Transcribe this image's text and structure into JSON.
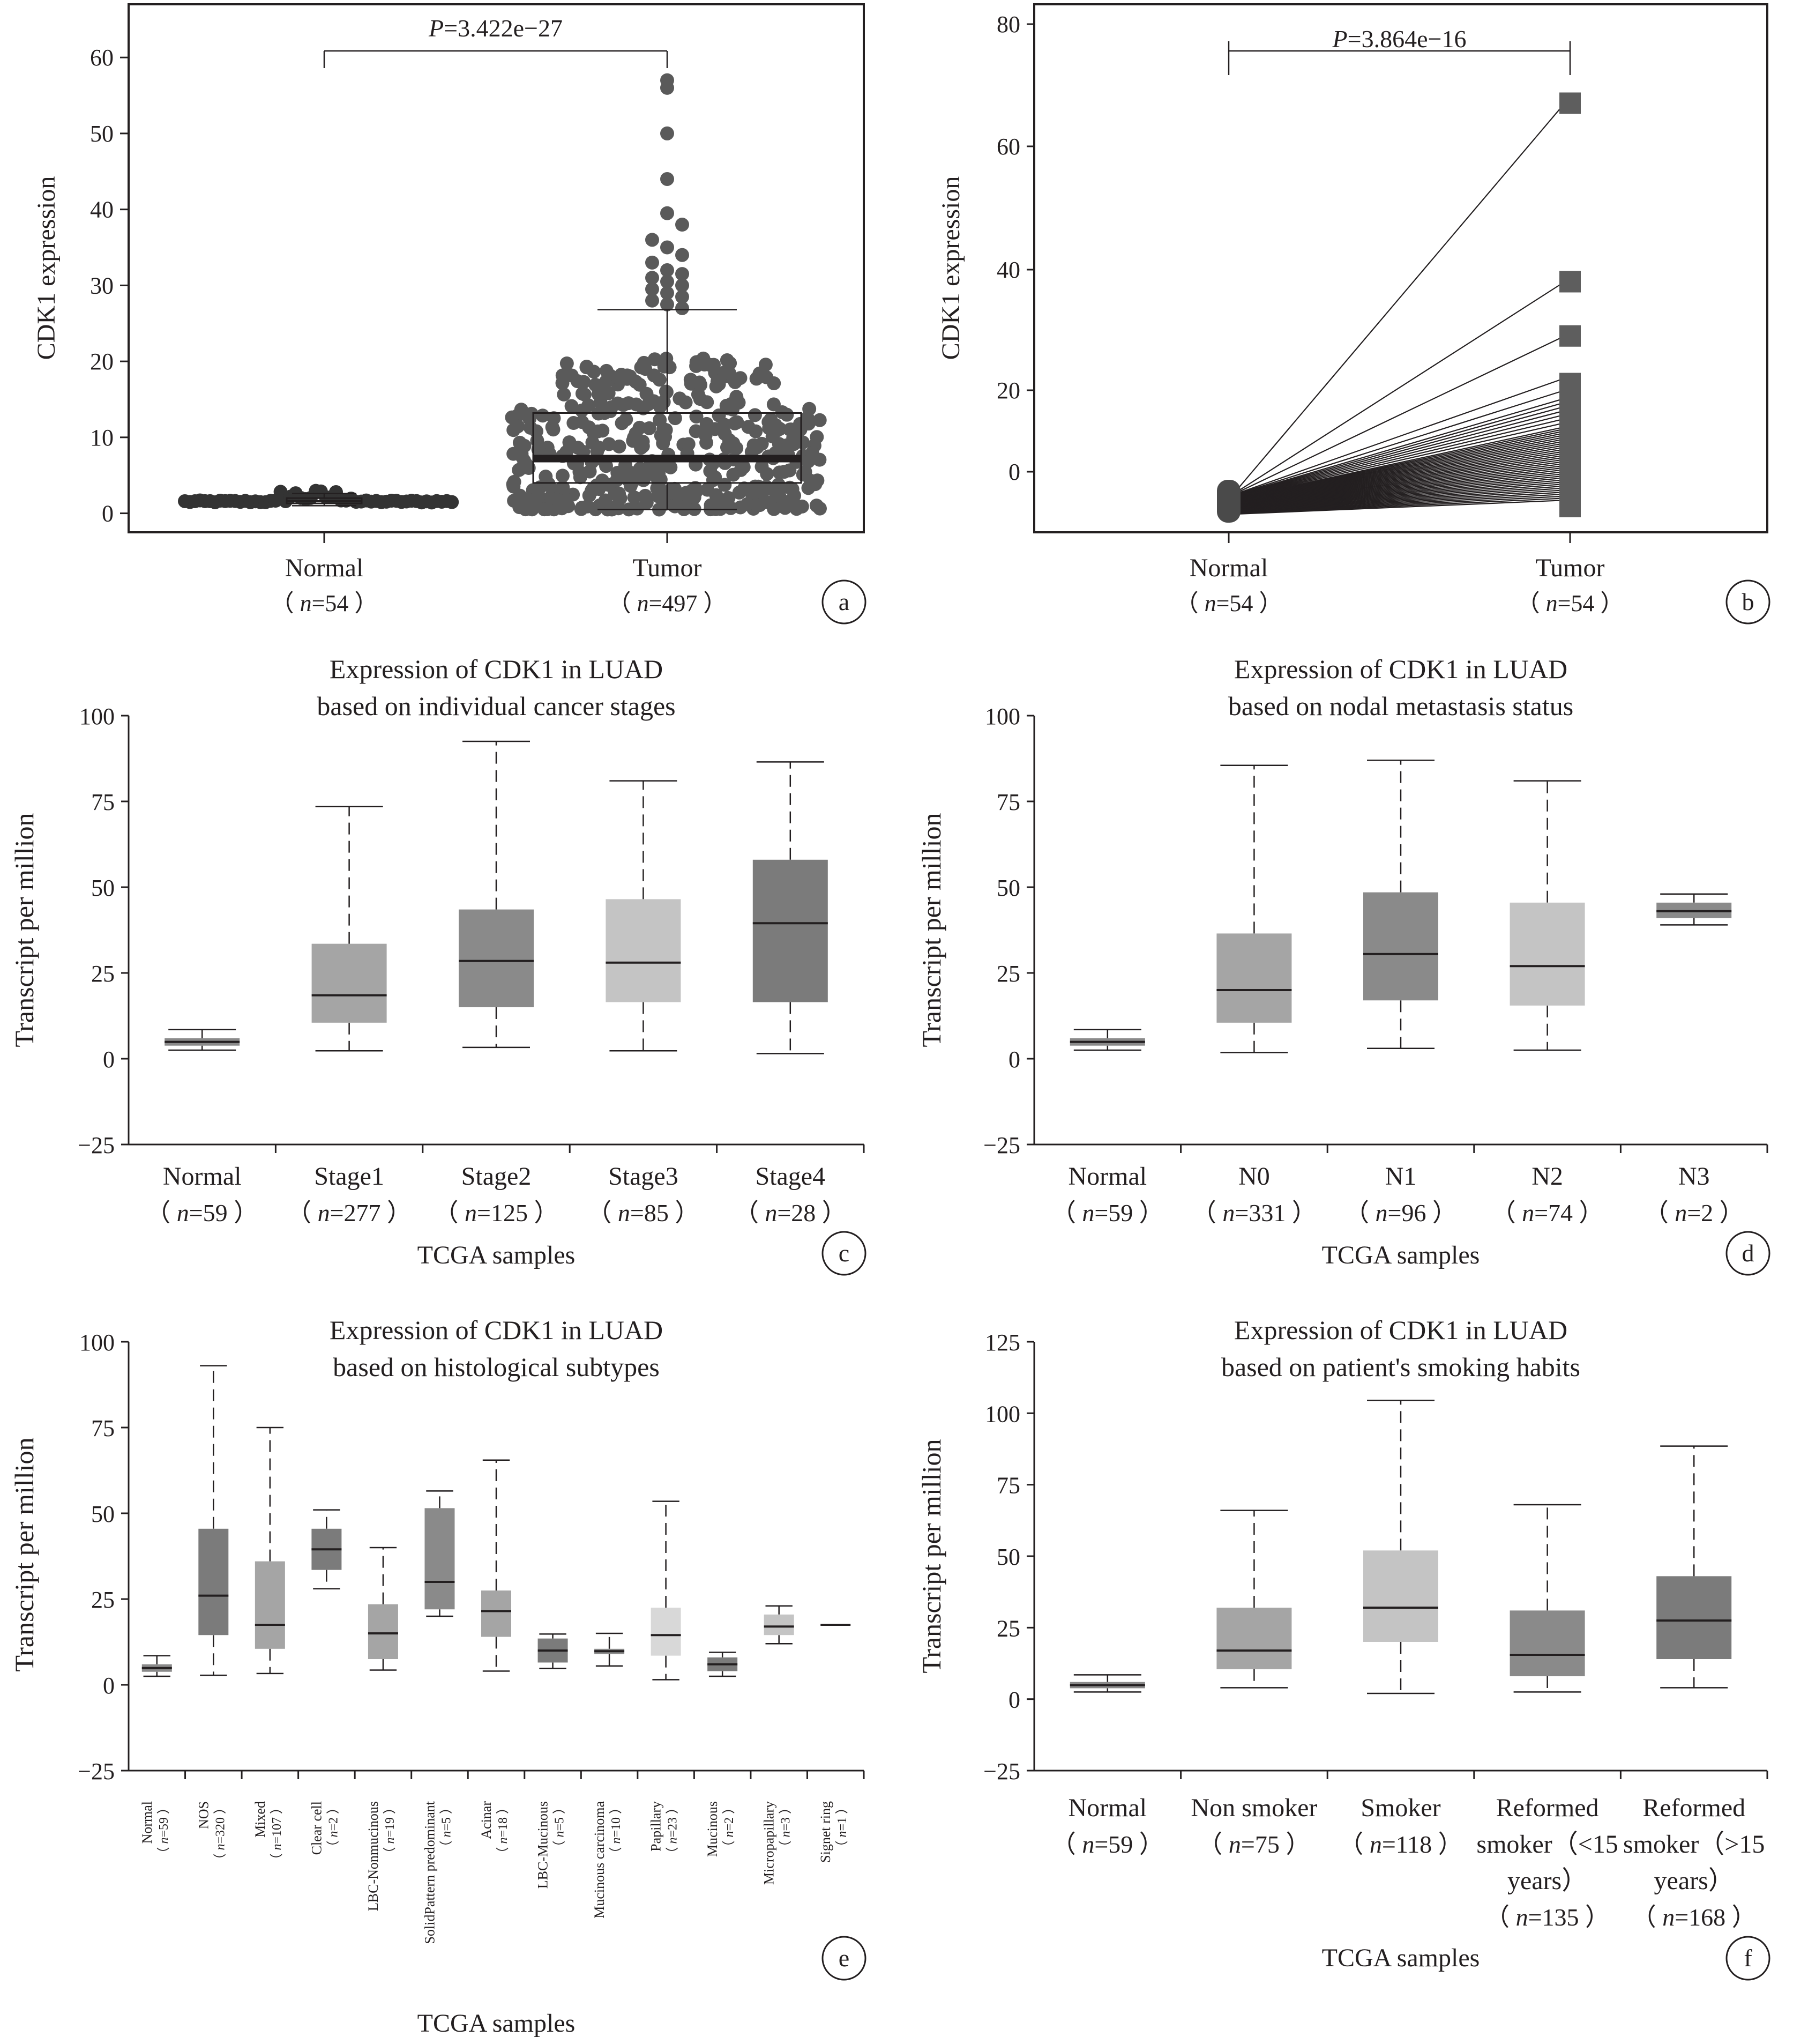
{
  "chart_data": [
    {
      "panel": "a",
      "type": "scatter",
      "subtype": "beeswarm with boxplot",
      "ylabel": "CDK1 expression",
      "ylim": [
        -2,
        66
      ],
      "yticks": [
        0,
        10,
        20,
        30,
        40,
        50,
        60
      ],
      "categories": [
        "Normal",
        "Tumor"
      ],
      "category_counts": [
        "（ n=54 ）",
        "（ n=497 ）"
      ],
      "p_value_text": "P=3.422e−27",
      "point_colors": [
        "#333333",
        "#5a5a5a"
      ],
      "box": [
        {
          "name": "Normal",
          "q1": 1.3,
          "median": 1.6,
          "q3": 2.0,
          "whisker_low": 1.0,
          "whisker_high": 2.6
        },
        {
          "name": "Tumor",
          "q1": 4.0,
          "median": 7.2,
          "q3": 13.2,
          "whisker_low": 0.5,
          "whisker_high": 26.8
        }
      ],
      "tumor_upper_points": [
        57,
        56,
        50,
        44,
        39.5,
        38,
        36,
        35,
        34,
        33,
        32,
        31.5,
        31,
        30.5,
        30,
        29.5,
        29,
        28.5,
        28,
        27.5,
        27
      ]
    },
    {
      "panel": "b",
      "type": "line",
      "subtype": "paired samples",
      "ylabel": "CDK1 expression",
      "yticks": [
        0,
        20,
        40,
        60,
        80
      ],
      "categories": [
        "Normal",
        "Tumor"
      ],
      "category_counts": [
        "（ n=54 ）",
        "（ n=54 ）"
      ],
      "p_value_text": "P=3.864e−16",
      "normal_range": [
        -6,
        -3
      ],
      "tumor_points": [
        67,
        38,
        29,
        22,
        20,
        18,
        17,
        16,
        15,
        14,
        13,
        12,
        11,
        10.5,
        10,
        9.5,
        9,
        8.5,
        8,
        7.5,
        7,
        6.5,
        6,
        5.5,
        5,
        4.5,
        4,
        3.5,
        3,
        2.5,
        2,
        1.5,
        1,
        0.5,
        0,
        -0.5,
        -1,
        -1.5,
        -2,
        -2.5,
        -3,
        -3.5,
        -4,
        -4.5,
        -5,
        -5.5,
        -6,
        -6.5,
        -7
      ]
    },
    {
      "panel": "c",
      "type": "box",
      "title": [
        "Expression of CDK1 in LUAD",
        "based on individual cancer stages"
      ],
      "ylabel": "Transcript per million",
      "xlabel": "TCGA samples",
      "ylim": [
        -25,
        100
      ],
      "yticks": [
        -25,
        0,
        25,
        50,
        75,
        100
      ],
      "boxes": [
        {
          "name": "Normal",
          "n": "（ n=59 ）",
          "min": 2.5,
          "q1": 3.8,
          "median": 4.9,
          "q3": 6.0,
          "max": 8.5,
          "color": "#8a8a8a"
        },
        {
          "name": "Stage1",
          "n": "（ n=277 ）",
          "min": 2.3,
          "q1": 10.5,
          "median": 18.5,
          "q3": 33.5,
          "max": 73.5,
          "color": "#a5a5a5"
        },
        {
          "name": "Stage2",
          "n": "（ n=125 ）",
          "min": 3.3,
          "q1": 15.0,
          "median": 28.5,
          "q3": 43.5,
          "max": 92.5,
          "color": "#8a8a8a"
        },
        {
          "name": "Stage3",
          "n": "（ n=85 ）",
          "min": 2.3,
          "q1": 16.5,
          "median": 28.0,
          "q3": 46.5,
          "max": 81.0,
          "color": "#c4c4c4"
        },
        {
          "name": "Stage4",
          "n": "（ n=28 ）",
          "min": 1.5,
          "q1": 16.5,
          "median": 39.5,
          "q3": 58.0,
          "max": 86.5,
          "color": "#7b7b7b"
        }
      ]
    },
    {
      "panel": "d",
      "type": "box",
      "title": [
        "Expression of CDK1 in LUAD",
        "based on nodal metastasis status"
      ],
      "ylabel": "Transcript per million",
      "xlabel": "TCGA samples",
      "ylim": [
        -25,
        100
      ],
      "yticks": [
        -25,
        0,
        25,
        50,
        75,
        100
      ],
      "boxes": [
        {
          "name": "Normal",
          "n": "（ n=59 ）",
          "min": 2.5,
          "q1": 3.8,
          "median": 4.9,
          "q3": 6.0,
          "max": 8.5,
          "color": "#8a8a8a"
        },
        {
          "name": "N0",
          "n": "（ n=331 ）",
          "min": 1.8,
          "q1": 10.5,
          "median": 20.0,
          "q3": 36.5,
          "max": 85.5,
          "color": "#a5a5a5"
        },
        {
          "name": "N1",
          "n": "（ n=96 ）",
          "min": 3.0,
          "q1": 17.0,
          "median": 30.5,
          "q3": 48.5,
          "max": 87.0,
          "color": "#8a8a8a"
        },
        {
          "name": "N2",
          "n": "（ n=74 ）",
          "min": 2.5,
          "q1": 15.5,
          "median": 27.0,
          "q3": 45.5,
          "max": 81.0,
          "color": "#c4c4c4"
        },
        {
          "name": "N3",
          "n": "（ n=2 ）",
          "min": 39.0,
          "q1": 41.0,
          "median": 43.0,
          "q3": 45.5,
          "max": 48.0,
          "color": "#8a8a8a"
        }
      ]
    },
    {
      "panel": "e",
      "type": "box",
      "title": [
        "Expression of CDK1 in LUAD",
        "based on histological subtypes"
      ],
      "ylabel": "Transcript per million",
      "xlabel": "TCGA samples",
      "ylim": [
        -25,
        100
      ],
      "yticks": [
        -25,
        0,
        25,
        50,
        75,
        100
      ],
      "boxes": [
        {
          "name": "Normal",
          "n": "（ n=59 ）",
          "min": 2.5,
          "q1": 3.8,
          "median": 4.9,
          "q3": 6.0,
          "max": 8.5,
          "color": "#8a8a8a"
        },
        {
          "name": "NOS",
          "n": "（ n=320 ）",
          "min": 2.8,
          "q1": 14.5,
          "median": 26.0,
          "q3": 45.5,
          "max": 93.0,
          "color": "#7b7b7b"
        },
        {
          "name": "Mixed",
          "n": "（ n=107 ）",
          "min": 3.3,
          "q1": 10.5,
          "median": 17.5,
          "q3": 36.0,
          "max": 75.0,
          "color": "#a5a5a5"
        },
        {
          "name": "Clear cell",
          "n": "（ n=2 ）",
          "min": 28.0,
          "q1": 33.5,
          "median": 39.5,
          "q3": 45.5,
          "max": 51.0,
          "color": "#7b7b7b"
        },
        {
          "name": "LBC-Nonmucinous",
          "n": "（ n=19 ）",
          "min": 4.3,
          "q1": 7.5,
          "median": 15.0,
          "q3": 23.5,
          "max": 40.0,
          "color": "#a5a5a5"
        },
        {
          "name": "SolidPattern predominant",
          "n": "（ n=5 ）",
          "min": 20.0,
          "q1": 22.0,
          "median": 30.0,
          "q3": 51.5,
          "max": 56.5,
          "color": "#8a8a8a"
        },
        {
          "name": "Acinar",
          "n": "（ n=18 ）",
          "min": 4.0,
          "q1": 14.0,
          "median": 21.5,
          "q3": 27.5,
          "max": 65.5,
          "color": "#a5a5a5"
        },
        {
          "name": "LBC-Mucinous",
          "n": "（ n=5 ）",
          "min": 4.8,
          "q1": 6.5,
          "median": 10.0,
          "q3": 13.5,
          "max": 14.8,
          "color": "#7b7b7b"
        },
        {
          "name": "Mucinous carcinoma",
          "n": "（ n=10 ）",
          "min": 5.5,
          "q1": 9.0,
          "median": 9.8,
          "q3": 10.5,
          "max": 15.0,
          "color": "#8a8a8a"
        },
        {
          "name": "Papillary",
          "n": "（ n=23 ）",
          "min": 1.5,
          "q1": 8.5,
          "median": 14.5,
          "q3": 22.5,
          "max": 53.5,
          "color": "#d8d8d8"
        },
        {
          "name": "Mucinous",
          "n": "（ n=2 ）",
          "min": 2.5,
          "q1": 4.0,
          "median": 6.0,
          "q3": 8.0,
          "max": 9.5,
          "color": "#7b7b7b"
        },
        {
          "name": "Micropapillary",
          "n": "（ n=3 ）",
          "min": 12.0,
          "q1": 14.5,
          "median": 17.0,
          "q3": 20.5,
          "max": 23.0,
          "color": "#c4c4c4"
        },
        {
          "name": "Signet ring",
          "n": "（ n=1 ）",
          "min": 17.5,
          "q1": 17.5,
          "median": 17.5,
          "q3": 17.5,
          "max": 17.5,
          "color": "#7b7b7b"
        }
      ]
    },
    {
      "panel": "f",
      "type": "box",
      "title": [
        "Expression of CDK1 in LUAD",
        "based on patient's smoking habits"
      ],
      "ylabel": "Transcript per million",
      "xlabel": "TCGA samples",
      "ylim": [
        -25,
        125
      ],
      "yticks": [
        -25,
        0,
        25,
        50,
        75,
        100,
        125
      ],
      "boxes": [
        {
          "name": "Normal",
          "n": "（ n=59 ）",
          "min": 2.5,
          "q1": 3.8,
          "median": 4.9,
          "q3": 6.0,
          "max": 8.5,
          "color": "#8a8a8a"
        },
        {
          "name": "Non smoker",
          "n": "（ n=75 ）",
          "min": 4.0,
          "q1": 10.5,
          "median": 17.0,
          "q3": 32.0,
          "max": 66.0,
          "color": "#a5a5a5"
        },
        {
          "name": "Smoker",
          "n": "（ n=118 ）",
          "min": 2.0,
          "q1": 20.0,
          "median": 32.0,
          "q3": 52.0,
          "max": 104.5,
          "color": "#c4c4c4"
        },
        {
          "name": "Reformed smoker（<15 years）",
          "n": "（ n=135 ）",
          "min": 2.5,
          "q1": 8.0,
          "median": 15.5,
          "q3": 31.0,
          "max": 68.0,
          "color": "#8a8a8a"
        },
        {
          "name": "Reformed smoker（>15 years）",
          "n": "（ n=168 ）",
          "min": 4.0,
          "q1": 14.0,
          "median": 27.5,
          "q3": 43.0,
          "max": 88.5,
          "color": "#7b7b7b"
        }
      ]
    }
  ],
  "panel_letters": [
    "a",
    "b",
    "c",
    "d",
    "e",
    "f"
  ],
  "colors": {
    "ink": "#231f20",
    "axis": "#231f20"
  }
}
